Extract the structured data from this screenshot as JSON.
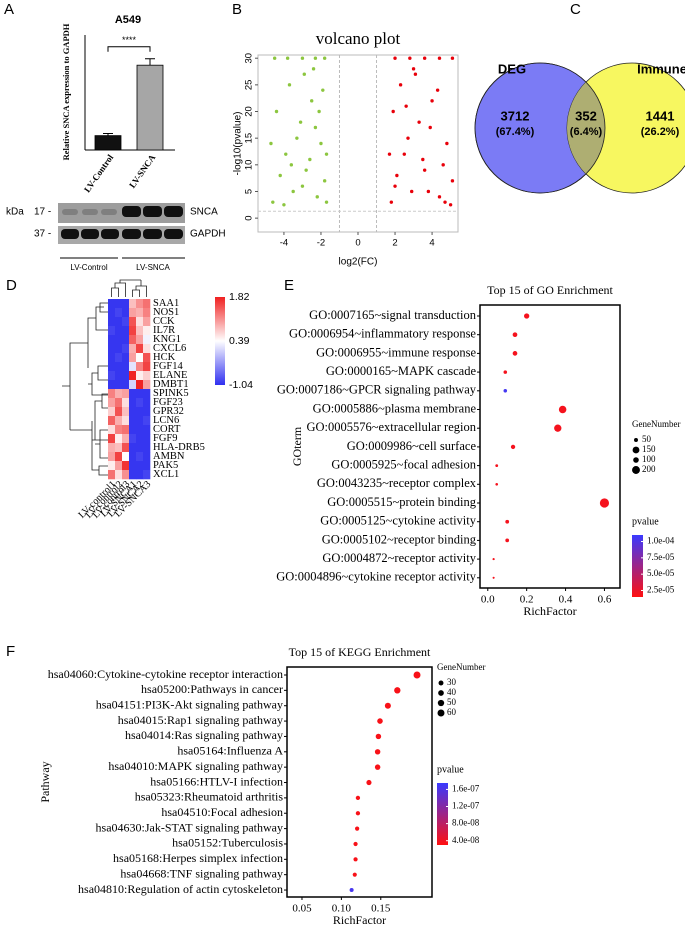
{
  "chart_data": [
    {
      "type": "bar",
      "panel": "A",
      "title": "A549",
      "ylabel": "Relative SNCA expression to GAPDH",
      "categories": [
        "LV-Control",
        "LV-SNCA"
      ],
      "values": [
        1.0,
        5.9
      ],
      "errors": [
        0.15,
        0.45
      ],
      "colors": [
        "#111111",
        "#a6a6a6"
      ],
      "ylim": [
        0,
        8
      ],
      "annotation": "****",
      "blot": {
        "unit": "kDa",
        "markers": [
          "17 -",
          "37 -"
        ],
        "bands": [
          "SNCA",
          "GAPDH"
        ],
        "groups": [
          "LV-Control",
          "LV-SNCA"
        ]
      }
    },
    {
      "type": "scatter",
      "panel": "B",
      "title": "volcano plot",
      "xlabel": "log2(FC)",
      "ylabel": "-log10(pvalue)",
      "xlim": [
        -5.4,
        5.4
      ],
      "ylim": [
        -2.6,
        30.6
      ],
      "xticks": [
        -4,
        -2,
        0,
        2,
        4
      ],
      "yticks": [
        0,
        5,
        10,
        15,
        20,
        25,
        30
      ],
      "vlines": [
        -1,
        1
      ],
      "hline": 1.3,
      "series": [
        {
          "color": "#8cc63f",
          "x": [
            -4.6,
            -4.2,
            -3.9,
            -3.5,
            -3.1,
            -2.8,
            -2.5,
            -2.2,
            -2.0,
            -1.8,
            -4.4,
            -3.7,
            -3.3,
            -2.9,
            -2.6,
            -2.3,
            -1.9,
            -1.7,
            -4.0,
            -3.0,
            -2.4,
            -4.7,
            -3.6,
            -2.1,
            -1.7,
            -4.5,
            -3.8,
            -3.0,
            -2.3,
            -1.8
          ],
          "values": [
            3,
            8,
            12,
            5,
            18,
            9,
            22,
            4,
            14,
            7,
            20,
            25,
            15,
            27,
            11,
            17,
            24,
            3,
            2.5,
            6,
            28,
            14,
            10,
            20,
            12,
            30,
            30,
            30,
            30,
            30
          ]
        },
        {
          "color": "#e8000a",
          "x": [
            1.8,
            2.1,
            2.5,
            2.9,
            3.3,
            3.6,
            4.0,
            4.4,
            4.8,
            5.1,
            1.9,
            2.3,
            2.7,
            3.1,
            3.5,
            3.9,
            4.3,
            4.7,
            5.0,
            2.0,
            3.0,
            4.6,
            2.6,
            1.7,
            3.8,
            2.0,
            2.8,
            3.6,
            4.4,
            5.1
          ],
          "values": [
            3,
            8,
            12,
            5,
            18,
            9,
            22,
            4,
            14,
            7,
            20,
            25,
            15,
            27,
            11,
            17,
            24,
            3,
            2.5,
            6,
            28,
            10,
            21,
            12,
            5,
            30,
            30,
            30,
            30,
            30
          ]
        }
      ]
    },
    {
      "type": "venn",
      "panel": "C",
      "sets": [
        {
          "name": "DEG",
          "color": "#7b7bf5",
          "label_color": "#2a2ad8"
        },
        {
          "name": "Immune",
          "color": "#f7f760",
          "label_color": "#a8961a"
        }
      ],
      "overlap_color": "#aeae72",
      "values": [
        3712,
        352,
        1441
      ],
      "percent_labels": [
        "(67.4%)",
        "(6.4%)",
        "(26.2%)"
      ]
    },
    {
      "type": "heatmap",
      "panel": "D",
      "rows": [
        "SAA1",
        "NOS1",
        "CCK",
        "IL7R",
        "KNG1",
        "CXCL6",
        "HCK",
        "FGF14",
        "ELANE",
        "DMBT1",
        "SPINK5",
        "FGF23",
        "GPR32",
        "LCN6",
        "CORT",
        "FGF9",
        "HLA-DRB5",
        "AMBN",
        "PAK5",
        "XCL1"
      ],
      "columns": [
        "LV-control1",
        "LV-control2",
        "LV-control3",
        "LV-SNCA1",
        "LV-SNCA2",
        "LV-SNCA3"
      ],
      "values": [
        [
          -1.0,
          -1.0,
          -1.0,
          0.8,
          1.1,
          1.3
        ],
        [
          -1.0,
          -0.9,
          -1.0,
          1.0,
          0.9,
          1.2
        ],
        [
          -1.0,
          -1.0,
          -0.9,
          1.5,
          0.6,
          1.0
        ],
        [
          -0.9,
          -1.0,
          -1.0,
          1.6,
          0.8,
          0.5
        ],
        [
          -1.0,
          -1.0,
          -1.0,
          1.4,
          1.0,
          0.3
        ],
        [
          -1.0,
          -1.0,
          -0.9,
          0.9,
          1.6,
          0.6
        ],
        [
          -1.0,
          -0.9,
          -1.0,
          1.0,
          0.4,
          1.5
        ],
        [
          -1.0,
          -1.0,
          -1.0,
          0.2,
          1.2,
          1.6
        ],
        [
          -0.9,
          -1.0,
          -1.0,
          1.8,
          0.5,
          0.7
        ],
        [
          -1.0,
          -1.0,
          -1.0,
          0.1,
          1.8,
          1.0
        ],
        [
          1.2,
          0.9,
          1.0,
          -1.0,
          -1.0,
          -1.0
        ],
        [
          1.0,
          1.3,
          0.6,
          -1.0,
          -0.9,
          -1.0
        ],
        [
          0.7,
          1.5,
          0.8,
          -1.0,
          -1.0,
          -1.0
        ],
        [
          1.4,
          0.9,
          0.6,
          -1.0,
          -1.0,
          -0.9
        ],
        [
          0.6,
          1.2,
          1.3,
          -1.0,
          -1.0,
          -1.0
        ],
        [
          1.6,
          0.5,
          0.9,
          -0.9,
          -1.0,
          -1.0
        ],
        [
          0.9,
          0.8,
          1.5,
          -1.0,
          -1.0,
          -1.0
        ],
        [
          1.0,
          1.6,
          0.4,
          -1.0,
          -0.9,
          -1.0
        ],
        [
          0.5,
          1.0,
          1.7,
          -1.0,
          -1.0,
          -1.0
        ],
        [
          1.3,
          0.6,
          1.1,
          -1.0,
          -1.0,
          -0.9
        ]
      ],
      "clim": [
        -1.04,
        1.82
      ],
      "colorbar_ticks": [
        1.82,
        0.39,
        -1.04
      ],
      "colors": [
        "#3030f0",
        "#ffffff",
        "#f02020"
      ]
    },
    {
      "type": "dotplot",
      "panel": "E",
      "title": "Top 15 of GO Enrichment",
      "xlabel": "RichFactor",
      "ylabel": "GOterm",
      "categories": [
        "GO:0007165~signal transduction",
        "GO:0006954~inflammatory response",
        "GO:0006955~immune response",
        "GO:0000165~MAPK cascade",
        "GO:0007186~GPCR signaling pathway",
        "GO:0005886~plasma membrane",
        "GO:0005576~extracellular region",
        "GO:0009986~cell surface",
        "GO:0005925~focal adhesion",
        "GO:0043235~receptor complex",
        "GO:0005515~protein binding",
        "GO:0005125~cytokine activity",
        "GO:0005102~receptor binding",
        "GO:0004872~receptor activity",
        "GO:0004896~cytokine receptor activity"
      ],
      "values": [
        0.2,
        0.14,
        0.14,
        0.09,
        0.09,
        0.385,
        0.36,
        0.13,
        0.046,
        0.046,
        0.6,
        0.1,
        0.1,
        0.03,
        0.03
      ],
      "sizes": [
        90,
        70,
        70,
        40,
        40,
        180,
        170,
        60,
        25,
        22,
        270,
        45,
        45,
        15,
        14
      ],
      "pvalues": [
        2e-05,
        2e-05,
        2e-05,
        2e-05,
        0.000105,
        2e-05,
        2e-05,
        2e-05,
        2e-05,
        2e-05,
        2e-05,
        2e-05,
        2e-05,
        2e-05,
        2e-05
      ],
      "xlim": [
        -0.04,
        0.68
      ],
      "xticks": [
        {
          "value": 0,
          "label": "0.0"
        },
        0.2,
        0.4,
        0.6
      ],
      "size_legend": {
        "title": "GeneNumber",
        "values": [
          50,
          150,
          100,
          200
        ]
      },
      "color_legend": {
        "title": "pvalue",
        "clim": [
          1.5e-05,
          0.00011
        ],
        "colors": [
          "#ff1010",
          "#3a3aff"
        ],
        "ticks": [
          {
            "value": 0.0001,
            "label": "1.0e-04"
          },
          {
            "value": 7.5e-05,
            "label": "7.5e-05"
          },
          {
            "value": 5e-05,
            "label": "5.0e-05"
          },
          {
            "value": 2.5e-05,
            "label": "2.5e-05"
          }
        ]
      }
    },
    {
      "type": "dotplot",
      "panel": "F",
      "title": "Top 15 of KEGG Enrichment",
      "xlabel": "RichFactor",
      "ylabel": "Pathway",
      "categories": [
        "hsa04060:Cytokine-cytokine receptor interaction",
        "hsa05200:Pathways in cancer",
        "hsa04151:PI3K-Akt signaling pathway",
        "hsa04015:Rap1 signaling pathway",
        "hsa04014:Ras signaling pathway",
        "hsa05164:Influenza A",
        "hsa04010:MAPK signaling pathway",
        "hsa05166:HTLV-I infection",
        "hsa05323:Rheumatoid arthritis",
        "hsa04510:Focal adhesion",
        "hsa04630:Jak-STAT signaling pathway",
        "hsa05152:Tuberculosis",
        "hsa05168:Herpes simplex infection",
        "hsa04668:TNF signaling pathway",
        "hsa04810:Regulation of actin cytoskeleton"
      ],
      "values": [
        0.196,
        0.171,
        0.159,
        0.149,
        0.147,
        0.146,
        0.146,
        0.135,
        0.121,
        0.121,
        0.12,
        0.118,
        0.118,
        0.117,
        0.113
      ],
      "sizes": [
        60,
        50,
        45,
        38,
        37,
        37,
        37,
        33,
        23,
        23,
        22,
        22,
        22,
        21,
        20
      ],
      "pvalues": [
        3.5e-08,
        3.5e-08,
        3.5e-08,
        3.5e-08,
        3.5e-08,
        3.5e-08,
        3.5e-08,
        3.5e-08,
        3.5e-08,
        3.5e-08,
        3.5e-08,
        3.5e-08,
        3.5e-08,
        3.5e-08,
        1.65e-07
      ],
      "xlim": [
        0.031,
        0.215
      ],
      "xticks": [
        0.05,
        {
          "value": 0.1,
          "label": "0.10"
        },
        0.15
      ],
      "size_legend": {
        "title": "GeneNumber",
        "values": [
          30,
          40,
          50,
          60
        ]
      },
      "color_legend": {
        "title": "pvalue",
        "clim": [
          3e-08,
          1.75e-07
        ],
        "colors": [
          "#ff1010",
          "#3a3aff"
        ],
        "ticks": [
          {
            "value": 1.6e-07,
            "label": "1.6e-07"
          },
          {
            "value": 1.2e-07,
            "label": "1.2e-07"
          },
          {
            "value": 8e-08,
            "label": "8.0e-08"
          },
          {
            "value": 4e-08,
            "label": "4.0e-08"
          }
        ]
      }
    }
  ]
}
